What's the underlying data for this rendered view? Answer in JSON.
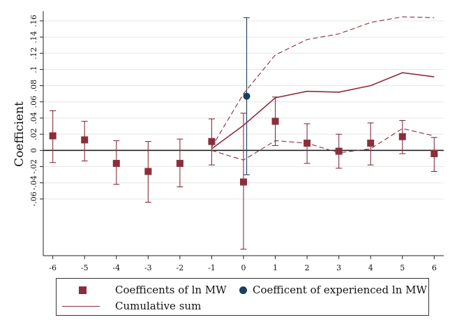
{
  "chart_data": {
    "type": "scatter",
    "ylabel": "Coefficient",
    "xlim": [
      -6.3,
      6.3
    ],
    "ylim": [
      -0.13,
      0.172
    ],
    "x_ticks": [
      -6,
      -5,
      -4,
      -3,
      -2,
      -1,
      0,
      1,
      2,
      3,
      4,
      5,
      6
    ],
    "y_ticks": [
      -0.06,
      -0.04,
      -0.02,
      0,
      0.02,
      0.04,
      0.06,
      0.08,
      0.1,
      0.12,
      0.14,
      0.16
    ],
    "y_tick_labels": [
      "-.06",
      "-.04",
      "-.02",
      "0",
      ".02",
      ".04",
      ".06",
      ".08",
      ".1",
      ".12",
      ".14",
      ".16"
    ],
    "grid": true,
    "colors": {
      "main": "#8B2E3C",
      "experienced": "#1B3F5E",
      "zero_line": "#222222",
      "grid": "#e6e6e6"
    },
    "series": [
      {
        "name": "Coefficents of ln MW",
        "kind": "points_with_ci",
        "points": [
          {
            "x": -6,
            "y": 0.018,
            "lo": -0.015,
            "hi": 0.049
          },
          {
            "x": -5,
            "y": 0.013,
            "lo": -0.013,
            "hi": 0.036
          },
          {
            "x": -4,
            "y": -0.016,
            "lo": -0.042,
            "hi": 0.012
          },
          {
            "x": -3,
            "y": -0.026,
            "lo": -0.064,
            "hi": 0.011
          },
          {
            "x": -2,
            "y": -0.016,
            "lo": -0.045,
            "hi": 0.014
          },
          {
            "x": -1,
            "y": 0.011,
            "lo": -0.018,
            "hi": 0.039
          },
          {
            "x": 0,
            "y": -0.039,
            "lo": -0.122,
            "hi": 0.046
          },
          {
            "x": 1,
            "y": 0.036,
            "lo": 0.006,
            "hi": 0.066
          },
          {
            "x": 2,
            "y": 0.009,
            "lo": -0.016,
            "hi": 0.033
          },
          {
            "x": 3,
            "y": -0.001,
            "lo": -0.022,
            "hi": 0.02
          },
          {
            "x": 4,
            "y": 0.009,
            "lo": -0.018,
            "hi": 0.034
          },
          {
            "x": 5,
            "y": 0.017,
            "lo": -0.004,
            "hi": 0.037
          },
          {
            "x": 6,
            "y": -0.004,
            "lo": -0.026,
            "hi": 0.016
          }
        ]
      },
      {
        "name": "Coefficent of experienced ln MW",
        "kind": "points_with_ci",
        "points": [
          {
            "x": 0.1,
            "y": 0.067,
            "lo": -0.03,
            "hi": 0.164
          }
        ]
      },
      {
        "name": "Cumulative sum",
        "kind": "line",
        "x": [
          -1,
          0,
          1,
          2,
          3,
          4,
          5,
          6
        ],
        "y": [
          0.002,
          0.031,
          0.065,
          0.073,
          0.072,
          0.08,
          0.096,
          0.091
        ]
      },
      {
        "kind": "dashed_band_upper",
        "x": [
          -1,
          0,
          1,
          2,
          3,
          4,
          5,
          6
        ],
        "y": [
          0.004,
          0.07,
          0.118,
          0.137,
          0.144,
          0.158,
          0.165,
          0.164
        ]
      },
      {
        "kind": "dashed_band_lower",
        "x": [
          -1,
          0,
          1,
          2,
          3,
          4,
          5,
          6
        ],
        "y": [
          0.0,
          -0.012,
          0.012,
          0.009,
          -0.003,
          0.002,
          0.027,
          0.018
        ]
      }
    ],
    "legend": [
      {
        "label": "Coefficents of ln MW",
        "marker": "square"
      },
      {
        "label": "Coefficent of experienced ln MW",
        "marker": "circle"
      },
      {
        "label": "Cumulative sum",
        "marker": "line"
      }
    ],
    "legend_position": "bottom"
  }
}
